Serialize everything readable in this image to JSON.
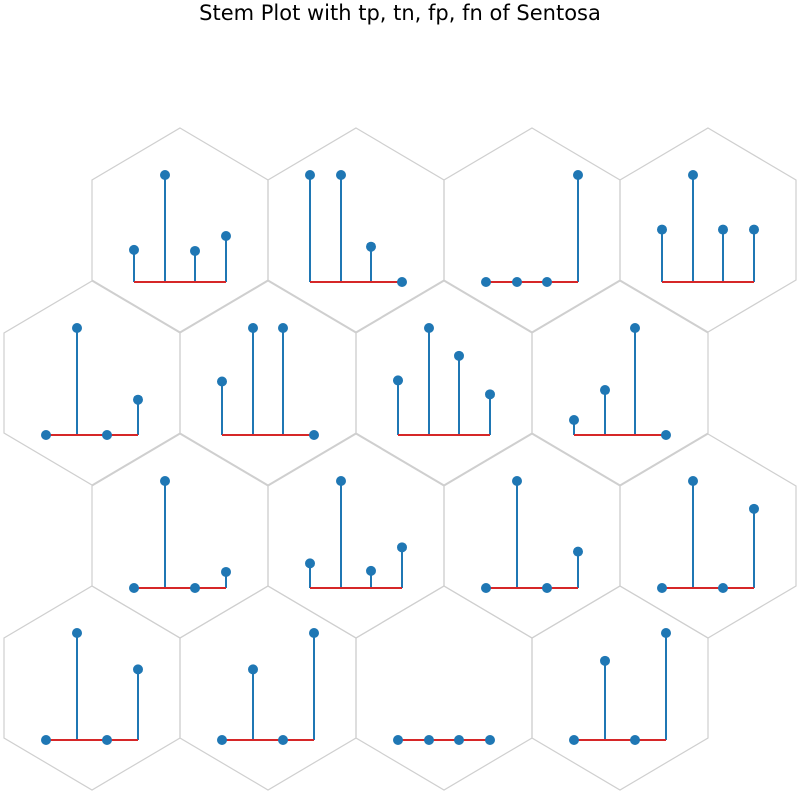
{
  "chart_data": {
    "type": "stem",
    "title": "Stem Plot with tp, tn, fp, fn of Sentosa",
    "xlabel": "",
    "ylabel": "",
    "grid": false,
    "layout": "hexagonal grid, 4 rows x 4 cells",
    "colors": {
      "stem": "#1f77b4",
      "marker": "#1f77b4",
      "baseline": "#d62728",
      "hexagon_edge": "#cfcfcf"
    },
    "cells": [
      {
        "values": [
          0.3,
          1.0,
          0.29,
          0.43
        ]
      },
      {
        "values": [
          1.0,
          1.0,
          0.33,
          0.0
        ]
      },
      {
        "values": [
          0.0,
          0.0,
          0.0,
          1.0
        ]
      },
      {
        "values": [
          0.49,
          1.0,
          0.49,
          0.49
        ]
      },
      {
        "values": [
          0.0,
          1.0,
          0.0,
          0.33
        ]
      },
      {
        "values": [
          0.5,
          1.0,
          1.0,
          0.0
        ]
      },
      {
        "values": [
          0.51,
          1.0,
          0.74,
          0.38
        ]
      },
      {
        "values": [
          0.14,
          0.42,
          1.0,
          0.0
        ]
      },
      {
        "values": [
          0.0,
          1.0,
          0.0,
          0.15
        ]
      },
      {
        "values": [
          0.23,
          1.0,
          0.16,
          0.38
        ]
      },
      {
        "values": [
          0.0,
          1.0,
          0.0,
          0.34
        ]
      },
      {
        "values": [
          0.0,
          1.0,
          0.0,
          0.74
        ]
      },
      {
        "values": [
          0.0,
          1.0,
          0.0,
          0.66
        ]
      },
      {
        "values": [
          0.0,
          0.66,
          0.0,
          1.0
        ]
      },
      {
        "values": [
          0.0,
          0.0,
          0.0,
          0.0
        ]
      },
      {
        "values": [
          0.0,
          0.74,
          0.0,
          1.0
        ]
      }
    ]
  }
}
